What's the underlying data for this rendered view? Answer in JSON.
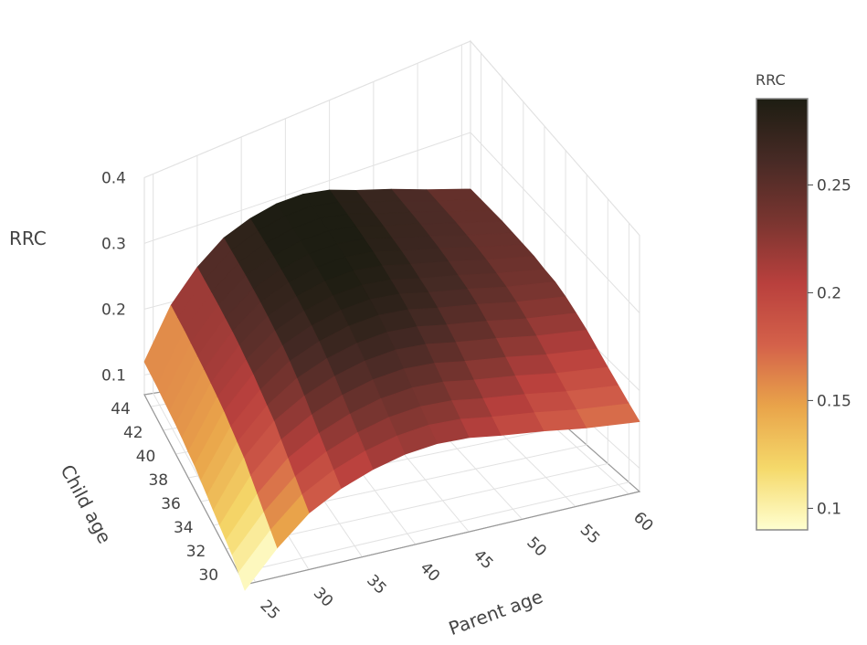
{
  "chart_data": {
    "type": "surface",
    "x_axis": {
      "label": "Parent age",
      "ticks": [
        25,
        30,
        35,
        40,
        45,
        50,
        55,
        60
      ],
      "range": [
        24,
        61
      ]
    },
    "y_axis": {
      "label": "Child age",
      "ticks": [
        30,
        32,
        34,
        36,
        38,
        40,
        42,
        44
      ],
      "range": [
        29,
        45
      ]
    },
    "z_axis": {
      "label": "RRC",
      "ticks": [
        0.1,
        0.2,
        0.3,
        0.4
      ],
      "range": [
        0.07,
        0.4
      ]
    },
    "colorbar": {
      "title": "RRC",
      "ticks": [
        0.1,
        0.15,
        0.2,
        0.25
      ],
      "range": [
        0.09,
        0.29
      ],
      "colorscale": [
        "#ffffd0",
        "#f5d96a",
        "#e9a44a",
        "#d4614a",
        "#b9403d",
        "#7a3530",
        "#472a25",
        "#1d1d12"
      ]
    },
    "grid": true,
    "surface_rows_by_child_age": [
      {
        "child_age": 29,
        "values": [
          0.06,
          0.12,
          0.165,
          0.19,
          0.205,
          0.213,
          0.214,
          0.208,
          0.197,
          0.185,
          0.172,
          0.16
        ]
      },
      {
        "child_age": 30,
        "values": [
          0.07,
          0.13,
          0.175,
          0.2,
          0.215,
          0.223,
          0.224,
          0.218,
          0.207,
          0.195,
          0.182,
          0.17
        ]
      },
      {
        "child_age": 31,
        "values": [
          0.08,
          0.14,
          0.185,
          0.21,
          0.225,
          0.233,
          0.234,
          0.228,
          0.217,
          0.205,
          0.192,
          0.18
        ]
      },
      {
        "child_age": 32,
        "values": [
          0.085,
          0.15,
          0.195,
          0.22,
          0.235,
          0.243,
          0.244,
          0.238,
          0.227,
          0.215,
          0.202,
          0.19
        ]
      },
      {
        "child_age": 33,
        "values": [
          0.09,
          0.16,
          0.205,
          0.23,
          0.245,
          0.253,
          0.254,
          0.248,
          0.237,
          0.225,
          0.212,
          0.2
        ]
      },
      {
        "child_age": 34,
        "values": [
          0.095,
          0.17,
          0.215,
          0.24,
          0.255,
          0.263,
          0.264,
          0.258,
          0.247,
          0.235,
          0.222,
          0.21
        ]
      },
      {
        "child_age": 35,
        "values": [
          0.1,
          0.175,
          0.22,
          0.248,
          0.263,
          0.271,
          0.272,
          0.266,
          0.255,
          0.243,
          0.23,
          0.218
        ]
      },
      {
        "child_age": 36,
        "values": [
          0.105,
          0.18,
          0.225,
          0.255,
          0.27,
          0.278,
          0.279,
          0.273,
          0.262,
          0.25,
          0.237,
          0.225
        ]
      },
      {
        "child_age": 37,
        "values": [
          0.11,
          0.185,
          0.23,
          0.26,
          0.275,
          0.283,
          0.284,
          0.278,
          0.267,
          0.255,
          0.242,
          0.23
        ]
      },
      {
        "child_age": 38,
        "values": [
          0.112,
          0.188,
          0.233,
          0.263,
          0.278,
          0.286,
          0.287,
          0.281,
          0.27,
          0.258,
          0.245,
          0.232
        ]
      },
      {
        "child_age": 39,
        "values": [
          0.115,
          0.19,
          0.236,
          0.266,
          0.281,
          0.289,
          0.29,
          0.284,
          0.273,
          0.261,
          0.248,
          0.235
        ]
      },
      {
        "child_age": 40,
        "values": [
          0.117,
          0.192,
          0.238,
          0.268,
          0.283,
          0.291,
          0.292,
          0.286,
          0.275,
          0.263,
          0.25,
          0.236
        ]
      },
      {
        "child_age": 41,
        "values": [
          0.118,
          0.193,
          0.239,
          0.269,
          0.284,
          0.292,
          0.293,
          0.287,
          0.276,
          0.264,
          0.251,
          0.237
        ]
      },
      {
        "child_age": 42,
        "values": [
          0.119,
          0.194,
          0.24,
          0.27,
          0.285,
          0.293,
          0.294,
          0.288,
          0.277,
          0.265,
          0.252,
          0.238
        ]
      },
      {
        "child_age": 43,
        "values": [
          0.12,
          0.195,
          0.24,
          0.27,
          0.285,
          0.293,
          0.294,
          0.288,
          0.277,
          0.265,
          0.252,
          0.238
        ]
      },
      {
        "child_age": 44,
        "values": [
          0.12,
          0.195,
          0.24,
          0.27,
          0.285,
          0.293,
          0.294,
          0.288,
          0.277,
          0.265,
          0.252,
          0.238
        ]
      },
      {
        "child_age": 45,
        "values": [
          0.12,
          0.195,
          0.24,
          0.27,
          0.285,
          0.293,
          0.294,
          0.288,
          0.277,
          0.265,
          0.252,
          0.238
        ]
      }
    ],
    "surface_parent_ages": [
      24,
      27,
      30,
      33,
      36,
      39,
      42,
      45,
      48,
      52,
      56,
      61
    ]
  }
}
